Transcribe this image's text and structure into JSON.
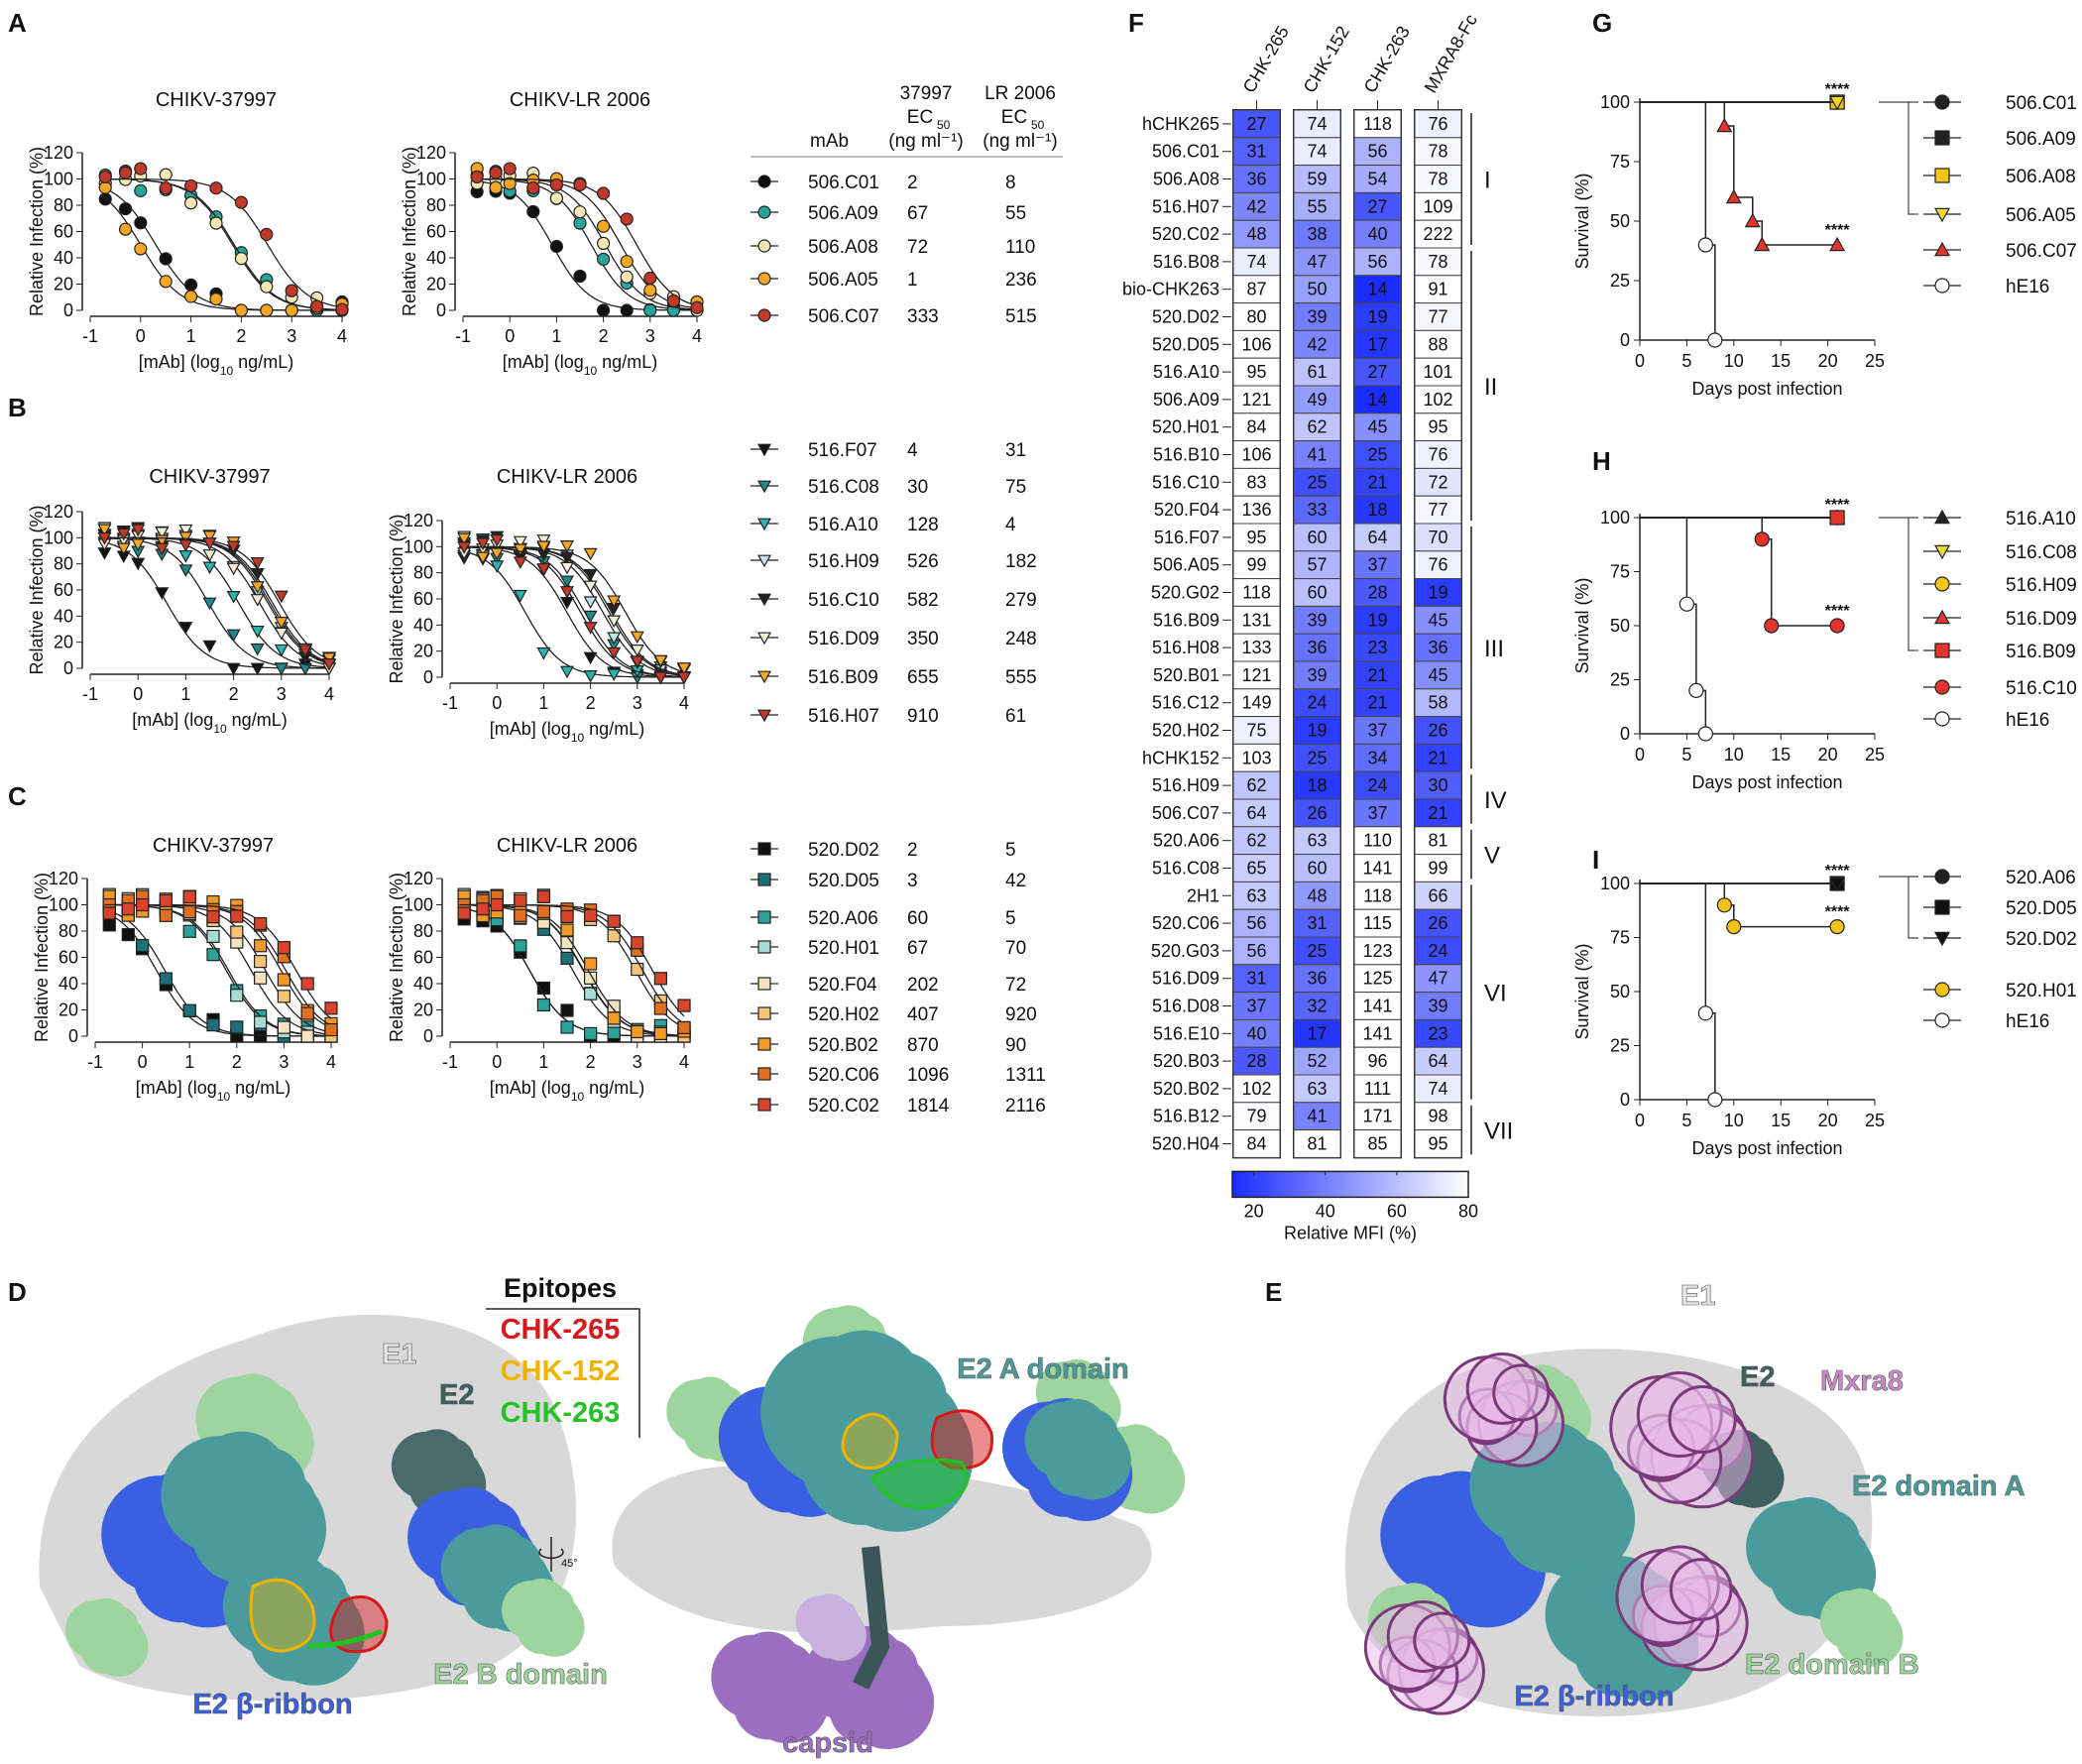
{
  "panel_labels": [
    "A",
    "B",
    "C",
    "D",
    "E",
    "F",
    "G",
    "H",
    "I"
  ],
  "table_header": {
    "mAb": "mAb",
    "strain1": "37997",
    "strain2": "LR 2006",
    "ec": "EC",
    "ec_sub": "50",
    "units": "(ng ml⁻¹)"
  },
  "axis_text": {
    "ylabel": "Relative Infection (%)",
    "xlabel_pre": "[mAb] (log",
    "xlabel_sub": "10",
    "xlabel_post": " ng/mL)",
    "strain1_title": "CHIKV-37997",
    "strain2_title": "CHIKV-LR 2006"
  },
  "colors": {
    "heat_low": "#1a2cff",
    "heat_high": "#ffffff",
    "epitope_265": "#d7191c",
    "epitope_152": "#f0b400",
    "epitope_263": "#22c222",
    "e2_ribbon": "#3a5fe0",
    "e2_a": "#4a9c9c",
    "e2_b": "#9ed49e",
    "e1": "#d8d8d8",
    "capsid": "#9b6fc0",
    "mxra8": "#e8b8e8"
  },
  "chart_data": [
    {
      "type": "line",
      "panel": "A",
      "title": [
        "CHIKV-37997",
        "CHIKV-LR 2006"
      ],
      "xlabel": "[mAb] (log10 ng/mL)",
      "ylabel": "Relative Infection (%)",
      "xlim": [
        -1,
        4
      ],
      "ylim": [
        0,
        120
      ],
      "xticks": [
        "-1",
        "0",
        "1",
        "2",
        "3",
        "4"
      ],
      "yticks": [
        "0",
        "20",
        "40",
        "60",
        "80",
        "100",
        "120"
      ],
      "marker": "circle",
      "series": [
        {
          "name": "506.C01",
          "ec50_37997": "2",
          "ec50_lr2006": "8",
          "color": "#111111"
        },
        {
          "name": "506.A09",
          "ec50_37997": "67",
          "ec50_lr2006": "55",
          "color": "#26a69a"
        },
        {
          "name": "506.A08",
          "ec50_37997": "72",
          "ec50_lr2006": "110",
          "color": "#f6e7b4"
        },
        {
          "name": "506.A05",
          "ec50_37997": "1",
          "ec50_lr2006": "236",
          "color": "#f5a623"
        },
        {
          "name": "506.C07",
          "ec50_37997": "333",
          "ec50_lr2006": "515",
          "color": "#c0392b"
        }
      ]
    },
    {
      "type": "line",
      "panel": "B",
      "title": [
        "CHIKV-37997",
        "CHIKV-LR 2006"
      ],
      "xlabel": "[mAb] (log10 ng/mL)",
      "ylabel": "Relative Infection (%)",
      "xlim": [
        -1,
        4
      ],
      "ylim": [
        0,
        120
      ],
      "xticks": [
        "-1",
        "0",
        "1",
        "2",
        "3",
        "4"
      ],
      "yticks": [
        "0",
        "20",
        "40",
        "60",
        "80",
        "100",
        "120"
      ],
      "marker": "triangle-down",
      "series": [
        {
          "name": "516.F07",
          "ec50_37997": "4",
          "ec50_lr2006": "31",
          "color": "#111111"
        },
        {
          "name": "516.C08",
          "ec50_37997": "30",
          "ec50_lr2006": "75",
          "color": "#1f8a8a"
        },
        {
          "name": "516.A10",
          "ec50_37997": "128",
          "ec50_lr2006": "4",
          "color": "#2ab3b0"
        },
        {
          "name": "516.H09",
          "ec50_37997": "526",
          "ec50_lr2006": "182",
          "color": "#bfe6e2"
        },
        {
          "name": "516.C10",
          "ec50_37997": "582",
          "ec50_lr2006": "279",
          "color": "#222222"
        },
        {
          "name": "516.D09",
          "ec50_37997": "350",
          "ec50_lr2006": "248",
          "color": "#f3eed8"
        },
        {
          "name": "516.B09",
          "ec50_37997": "655",
          "ec50_lr2006": "555",
          "color": "#f5a623"
        },
        {
          "name": "516.H07",
          "ec50_37997": "910",
          "ec50_lr2006": "61",
          "color": "#c0392b"
        }
      ]
    },
    {
      "type": "line",
      "panel": "C",
      "title": [
        "CHIKV-37997",
        "CHIKV-LR 2006"
      ],
      "xlabel": "[mAb] (log10 ng/mL)",
      "ylabel": "Relative Infection (%)",
      "xlim": [
        -1,
        4
      ],
      "ylim": [
        0,
        120
      ],
      "xticks": [
        "-1",
        "0",
        "1",
        "2",
        "3",
        "4"
      ],
      "yticks": [
        "0",
        "20",
        "40",
        "60",
        "80",
        "100",
        "120"
      ],
      "marker": "square",
      "series": [
        {
          "name": "520.D02",
          "ec50_37997": "2",
          "ec50_lr2006": "5",
          "color": "#111111"
        },
        {
          "name": "520.D05",
          "ec50_37997": "3",
          "ec50_lr2006": "42",
          "color": "#1f6f78"
        },
        {
          "name": "520.A06",
          "ec50_37997": "60",
          "ec50_lr2006": "5",
          "color": "#2aa39b"
        },
        {
          "name": "520.H01",
          "ec50_37997": "67",
          "ec50_lr2006": "70",
          "color": "#a8dcd2"
        },
        {
          "name": "520.F04",
          "ec50_37997": "202",
          "ec50_lr2006": "72",
          "color": "#f3e3bf"
        },
        {
          "name": "520.H02",
          "ec50_37997": "407",
          "ec50_lr2006": "920",
          "color": "#f7c57a"
        },
        {
          "name": "520.B02",
          "ec50_37997": "870",
          "ec50_lr2006": "90",
          "color": "#f29a26"
        },
        {
          "name": "520.C06",
          "ec50_37997": "1096",
          "ec50_lr2006": "1311",
          "color": "#e07020"
        },
        {
          "name": "520.C02",
          "ec50_37997": "1814",
          "ec50_lr2006": "2116",
          "color": "#d9422b"
        }
      ]
    },
    {
      "type": "heatmap",
      "panel": "F",
      "columns": [
        "CHK-265",
        "CHK-152",
        "CHK-263",
        "MXRA8-Fc"
      ],
      "colorbar_label": "Relative MFI (%)",
      "colorbar_ticks": [
        "20",
        "40",
        "60",
        "80"
      ],
      "colorbar_range": [
        14,
        80
      ],
      "rows": [
        "hCHK265",
        "506.C01",
        "506.A08",
        "516.H07",
        "520.C02",
        "516.B08",
        "bio-CHK263",
        "520.D02",
        "520.D05",
        "516.A10",
        "506.A09",
        "520.H01",
        "516.B10",
        "516.C10",
        "520.F04",
        "516.F07",
        "506.A05",
        "520.G02",
        "516.B09",
        "516.H08",
        "520.B01",
        "516.C12",
        "520.H02",
        "hCHK152",
        "516.H09",
        "506.C07",
        "520.A06",
        "516.C08",
        "2H1",
        "520.C06",
        "520.G03",
        "516.D09",
        "516.D08",
        "516.E10",
        "520.B03",
        "520.B02",
        "516.B12",
        "520.H04"
      ],
      "values": [
        [
          27,
          74,
          118,
          76
        ],
        [
          31,
          74,
          56,
          78
        ],
        [
          36,
          59,
          54,
          78
        ],
        [
          42,
          55,
          27,
          109
        ],
        [
          48,
          38,
          40,
          222
        ],
        [
          74,
          47,
          56,
          78
        ],
        [
          87,
          50,
          14,
          91
        ],
        [
          80,
          39,
          19,
          77
        ],
        [
          106,
          42,
          17,
          88
        ],
        [
          95,
          61,
          27,
          101
        ],
        [
          121,
          49,
          14,
          102
        ],
        [
          84,
          62,
          45,
          95
        ],
        [
          106,
          41,
          25,
          76
        ],
        [
          83,
          25,
          21,
          72
        ],
        [
          136,
          33,
          18,
          77
        ],
        [
          95,
          60,
          64,
          70
        ],
        [
          99,
          57,
          37,
          76
        ],
        [
          118,
          60,
          28,
          19
        ],
        [
          131,
          39,
          19,
          45
        ],
        [
          133,
          36,
          23,
          36
        ],
        [
          121,
          39,
          21,
          45
        ],
        [
          149,
          24,
          21,
          58
        ],
        [
          75,
          19,
          37,
          26
        ],
        [
          103,
          25,
          34,
          21
        ],
        [
          62,
          18,
          24,
          30
        ],
        [
          64,
          26,
          37,
          21
        ],
        [
          62,
          63,
          110,
          81
        ],
        [
          65,
          60,
          141,
          99
        ],
        [
          63,
          48,
          118,
          66
        ],
        [
          56,
          31,
          115,
          26
        ],
        [
          56,
          25,
          123,
          24
        ],
        [
          31,
          36,
          125,
          47
        ],
        [
          37,
          32,
          141,
          39
        ],
        [
          40,
          17,
          141,
          23
        ],
        [
          28,
          52,
          96,
          64
        ],
        [
          102,
          63,
          111,
          74
        ],
        [
          79,
          41,
          171,
          98
        ],
        [
          84,
          81,
          85,
          95
        ]
      ],
      "groups": [
        {
          "label": "I",
          "start": 0,
          "end": 4
        },
        {
          "label": "II",
          "start": 5,
          "end": 14
        },
        {
          "label": "III",
          "start": 15,
          "end": 23
        },
        {
          "label": "IV",
          "start": 24,
          "end": 25
        },
        {
          "label": "V",
          "start": 26,
          "end": 27
        },
        {
          "label": "VI",
          "start": 28,
          "end": 35
        },
        {
          "label": "VII",
          "start": 36,
          "end": 37
        }
      ]
    },
    {
      "type": "line",
      "panel": "G",
      "xlabel": "Days post infection",
      "ylabel": "Survival (%)",
      "xlim": [
        0,
        25
      ],
      "ylim": [
        0,
        100
      ],
      "xticks": [
        "0",
        "5",
        "10",
        "15",
        "20",
        "25"
      ],
      "yticks": [
        "0",
        "25",
        "50",
        "75",
        "100"
      ],
      "series": [
        {
          "name": "506.C01",
          "marker": "circle",
          "color": "#222222",
          "x": [
            0,
            21
          ],
          "y": [
            100,
            100
          ]
        },
        {
          "name": "506.A09",
          "marker": "square",
          "color": "#222222",
          "x": [
            0,
            21
          ],
          "y": [
            100,
            100
          ]
        },
        {
          "name": "506.A08",
          "marker": "square",
          "color": "#f2c417",
          "x": [
            0,
            21
          ],
          "y": [
            100,
            100
          ]
        },
        {
          "name": "506.A05",
          "marker": "triangle-down",
          "color": "#e8d830",
          "x": [
            0,
            21
          ],
          "y": [
            100,
            100
          ]
        },
        {
          "name": "506.C07",
          "marker": "triangle",
          "color": "#e0342c",
          "x": [
            0,
            9,
            10,
            12,
            13,
            21
          ],
          "y": [
            100,
            90,
            60,
            50,
            40,
            40
          ]
        },
        {
          "name": "hE16",
          "marker": "circle",
          "color": "#ffffff",
          "x": [
            0,
            7,
            8
          ],
          "y": [
            100,
            40,
            0
          ]
        }
      ],
      "annotations": [
        "****",
        "****"
      ],
      "bracket_group": [
        "506.C01",
        "506.A09",
        "506.A08",
        "506.A05"
      ]
    },
    {
      "type": "line",
      "panel": "H",
      "xlabel": "Days post infection",
      "ylabel": "Survival (%)",
      "xlim": [
        0,
        25
      ],
      "ylim": [
        0,
        100
      ],
      "xticks": [
        "0",
        "5",
        "10",
        "15",
        "20",
        "25"
      ],
      "yticks": [
        "0",
        "25",
        "50",
        "75",
        "100"
      ],
      "series": [
        {
          "name": "516.A10",
          "marker": "triangle",
          "color": "#222222",
          "x": [
            0,
            21
          ],
          "y": [
            100,
            100
          ]
        },
        {
          "name": "516.C08",
          "marker": "triangle-down",
          "color": "#e8d830",
          "x": [
            0,
            21
          ],
          "y": [
            100,
            100
          ]
        },
        {
          "name": "516.H09",
          "marker": "circle",
          "color": "#f2c417",
          "x": [
            0,
            21
          ],
          "y": [
            100,
            100
          ]
        },
        {
          "name": "516.D09",
          "marker": "triangle",
          "color": "#e0342c",
          "x": [
            0,
            21
          ],
          "y": [
            100,
            100
          ]
        },
        {
          "name": "516.B09",
          "marker": "square",
          "color": "#e0342c",
          "x": [
            0,
            21
          ],
          "y": [
            100,
            100
          ]
        },
        {
          "name": "516.C10",
          "marker": "circle",
          "color": "#e0342c",
          "x": [
            0,
            13,
            14,
            21
          ],
          "y": [
            100,
            90,
            50,
            50
          ]
        },
        {
          "name": "hE16",
          "marker": "circle",
          "color": "#ffffff",
          "x": [
            0,
            5,
            6,
            7
          ],
          "y": [
            100,
            60,
            20,
            0
          ]
        }
      ],
      "annotations": [
        "****",
        "****"
      ],
      "bracket_group": [
        "516.A10",
        "516.C08",
        "516.H09",
        "516.D09",
        "516.B09"
      ]
    },
    {
      "type": "line",
      "panel": "I",
      "xlabel": "Days post infection",
      "ylabel": "Survival (%)",
      "xlim": [
        0,
        25
      ],
      "ylim": [
        0,
        100
      ],
      "xticks": [
        "0",
        "5",
        "10",
        "15",
        "20",
        "25"
      ],
      "yticks": [
        "0",
        "25",
        "50",
        "75",
        "100"
      ],
      "series": [
        {
          "name": "520.A06",
          "marker": "circle",
          "color": "#222222",
          "x": [
            0,
            21
          ],
          "y": [
            100,
            100
          ]
        },
        {
          "name": "520.D05",
          "marker": "square",
          "color": "#111111",
          "x": [
            0,
            21
          ],
          "y": [
            100,
            100
          ]
        },
        {
          "name": "520.D02",
          "marker": "triangle-down",
          "color": "#111111",
          "x": [
            0,
            21
          ],
          "y": [
            100,
            100
          ]
        },
        {
          "name": "520.H01",
          "marker": "circle",
          "color": "#f2c417",
          "x": [
            0,
            9,
            10,
            21
          ],
          "y": [
            100,
            90,
            80,
            80
          ]
        },
        {
          "name": "hE16",
          "marker": "circle",
          "color": "#ffffff",
          "x": [
            0,
            7,
            8
          ],
          "y": [
            100,
            40,
            0
          ]
        }
      ],
      "annotations": [
        "****",
        "****"
      ],
      "bracket_group": [
        "520.A06",
        "520.D05",
        "520.D02"
      ]
    }
  ],
  "panel_d": {
    "legend_title": "Epitopes",
    "epitopes": [
      "CHK-265",
      "CHK-152",
      "CHK-263"
    ],
    "labels": {
      "e1": "E1",
      "e2": "E2",
      "e2b": "E2 B domain",
      "ribbon": "E2 β-ribbon",
      "e2a": "E2 A domain",
      "capsid": "capsid",
      "rotation": "45°"
    }
  },
  "panel_e": {
    "labels": {
      "e1": "E1",
      "e2": "E2",
      "mxra8": "Mxra8",
      "e2a": "E2 domain A",
      "e2b": "E2 domain B",
      "ribbon": "E2 β-ribbon"
    }
  }
}
